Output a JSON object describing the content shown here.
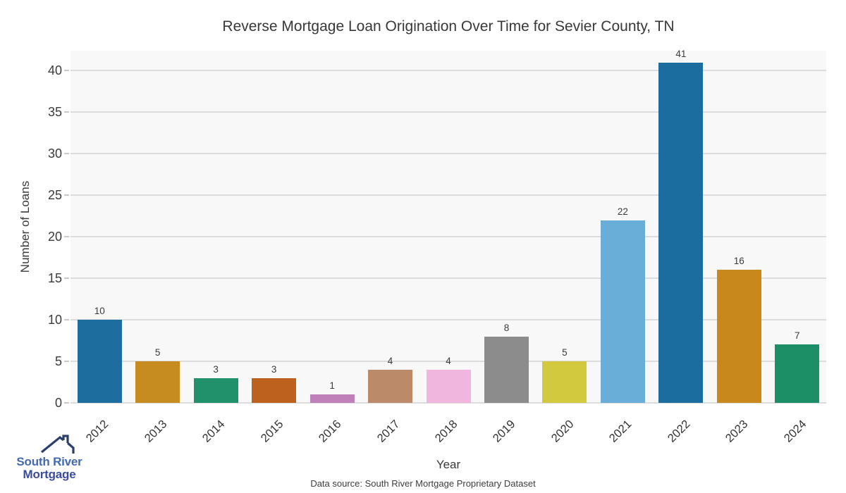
{
  "title": "Reverse Mortgage Loan Origination Over Time for Sevier County, TN",
  "chart_data": {
    "type": "bar",
    "title": "Reverse Mortgage Loan Origination Over Time for Sevier County, TN",
    "xlabel": "Year",
    "ylabel": "Number of Loans",
    "categories": [
      "2012",
      "2013",
      "2014",
      "2015",
      "2016",
      "2017",
      "2018",
      "2019",
      "2020",
      "2021",
      "2022",
      "2023",
      "2024"
    ],
    "values": [
      10,
      5,
      3,
      3,
      1,
      4,
      4,
      8,
      5,
      22,
      41,
      16,
      7
    ],
    "bar_colors": [
      "#1d6e9f",
      "#c68c1f",
      "#21916c",
      "#bc611e",
      "#bf80b9",
      "#bb8a68",
      "#f1b6dd",
      "#8c8c8c",
      "#d2c93f",
      "#69aed8",
      "#1a6d9e",
      "#c8881b",
      "#1c8f66"
    ],
    "yticks": [
      0,
      5,
      10,
      15,
      20,
      25,
      30,
      35,
      40
    ],
    "ylim": [
      0,
      42.4
    ],
    "grid": true,
    "legend": "none",
    "value_labels": true,
    "plot_background": "#f8f8f8",
    "gridline_color": "#dcdcdc"
  },
  "footer": {
    "source_text": "Data source: South River Mortgage Proprietary Dataset"
  },
  "logo": {
    "line1": "South River",
    "line2": "Mortgage",
    "line1_color": "#4468b1",
    "line2_color": "#3a4ba0",
    "roof_color": "#2b3e6e"
  }
}
